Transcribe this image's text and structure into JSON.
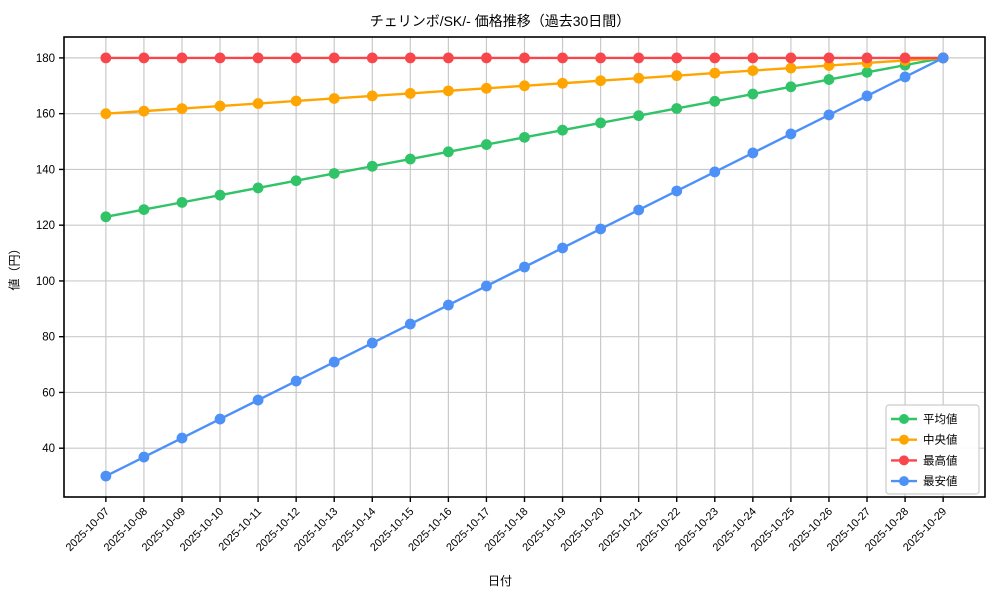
{
  "chart_data": {
    "type": "line",
    "title": "チェリンボ/SK/- 価格推移（過去30日間）",
    "xlabel": "日付",
    "ylabel": "値（円）",
    "x": [
      "2025-10-07",
      "2025-10-08",
      "2025-10-09",
      "2025-10-10",
      "2025-10-11",
      "2025-10-12",
      "2025-10-13",
      "2025-10-14",
      "2025-10-15",
      "2025-10-16",
      "2025-10-17",
      "2025-10-18",
      "2025-10-19",
      "2025-10-20",
      "2025-10-21",
      "2025-10-22",
      "2025-10-23",
      "2025-10-24",
      "2025-10-25",
      "2025-10-26",
      "2025-10-27",
      "2025-10-28",
      "2025-10-29"
    ],
    "series": [
      {
        "id": "average",
        "name": "平均値",
        "color": "#30c367",
        "values": [
          123.0,
          125.59,
          128.18,
          130.77,
          133.36,
          135.95,
          138.55,
          141.14,
          143.73,
          146.32,
          148.91,
          151.5,
          154.09,
          156.68,
          159.27,
          161.86,
          164.45,
          167.05,
          169.64,
          172.23,
          174.82,
          177.41,
          180.0
        ]
      },
      {
        "id": "median",
        "name": "中央値",
        "color": "#ffa502",
        "values": [
          160.0,
          160.91,
          161.82,
          162.73,
          163.64,
          164.55,
          165.45,
          166.36,
          167.27,
          168.18,
          169.09,
          170.0,
          170.91,
          171.82,
          172.73,
          173.64,
          174.55,
          175.45,
          176.36,
          177.27,
          178.18,
          179.09,
          180.0
        ]
      },
      {
        "id": "max",
        "name": "最高値",
        "color": "#f7474d",
        "values": [
          180.0,
          180.0,
          180.0,
          180.0,
          180.0,
          180.0,
          180.0,
          180.0,
          180.0,
          180.0,
          180.0,
          180.0,
          180.0,
          180.0,
          180.0,
          180.0,
          180.0,
          180.0,
          180.0,
          180.0,
          180.0,
          180.0,
          180.0
        ]
      },
      {
        "id": "min",
        "name": "最安値",
        "color": "#4d90f7",
        "values": [
          30.0,
          36.82,
          43.64,
          50.45,
          57.27,
          64.09,
          70.91,
          77.73,
          84.55,
          91.36,
          98.18,
          105.0,
          111.82,
          118.64,
          125.45,
          132.27,
          139.09,
          145.91,
          152.73,
          159.55,
          166.36,
          173.18,
          180.0
        ]
      }
    ],
    "yticks": [
      40,
      60,
      80,
      100,
      120,
      140,
      160,
      180
    ],
    "ylim": [
      22.5,
      187.5
    ],
    "xlim": [
      -1.1,
      23.1
    ],
    "grid": true,
    "legend_position": "lower right",
    "colors": {
      "background": "#ffffff",
      "grid": "#c9c9c9",
      "frame": "#000000",
      "text": "#000000",
      "legend_border": "#cccccc",
      "legend_background": "#ffffff"
    }
  }
}
